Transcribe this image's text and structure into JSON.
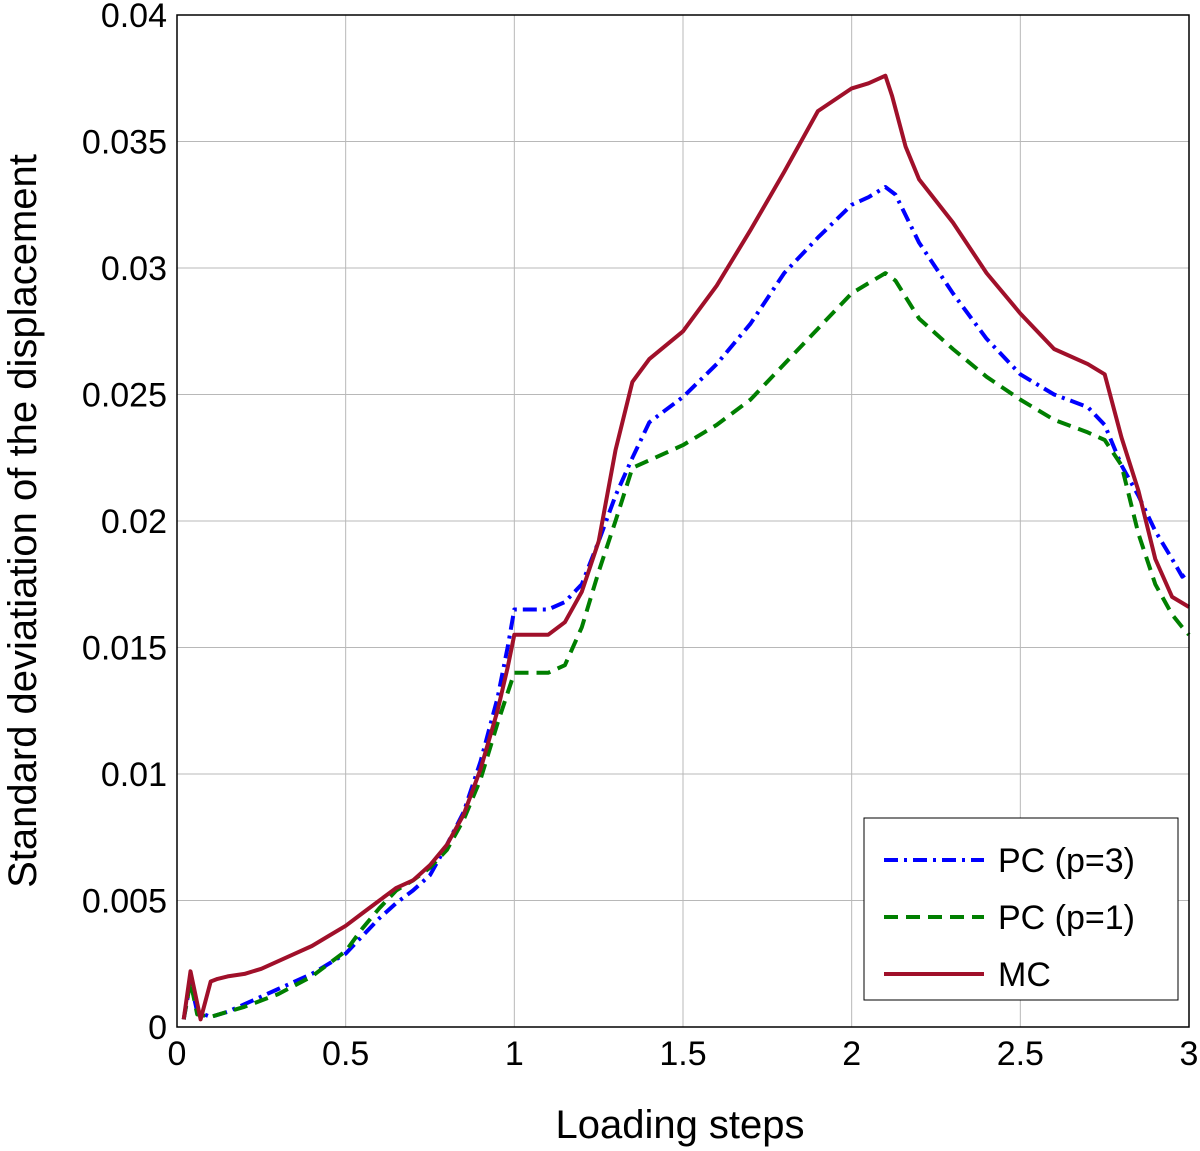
{
  "chart_data": {
    "type": "line",
    "title": "",
    "xlabel": "Loading steps",
    "ylabel": "Standard deviatiation of the displacement",
    "xlim": [
      0,
      3
    ],
    "ylim": [
      0,
      0.04
    ],
    "grid": true,
    "legend_position": "bottom-right",
    "x_ticks": [
      "0",
      "0.5",
      "1",
      "1.5",
      "2",
      "2.5",
      "3"
    ],
    "y_ticks": [
      "0",
      "0.005",
      "0.01",
      "0.015",
      "0.02",
      "0.025",
      "0.03",
      "0.035",
      "0.04"
    ],
    "series": [
      {
        "name": "PC (p=3)",
        "color": "#0000ff",
        "style": "dashdot",
        "x": [
          0.02,
          0.04,
          0.06,
          0.1,
          0.15,
          0.2,
          0.3,
          0.4,
          0.5,
          0.55,
          0.6,
          0.65,
          0.7,
          0.75,
          0.8,
          0.85,
          0.9,
          0.95,
          0.98,
          1.0,
          1.05,
          1.1,
          1.15,
          1.2,
          1.25,
          1.3,
          1.35,
          1.4,
          1.5,
          1.6,
          1.7,
          1.8,
          1.9,
          2.0,
          2.05,
          2.1,
          2.13,
          2.2,
          2.3,
          2.4,
          2.5,
          2.6,
          2.7,
          2.75,
          2.8,
          2.85,
          2.9,
          2.95,
          2.98,
          3.0
        ],
        "y": [
          0.0003,
          0.0018,
          0.0006,
          0.0004,
          0.0006,
          0.0009,
          0.0015,
          0.0021,
          0.0029,
          0.0036,
          0.0043,
          0.0049,
          0.0054,
          0.006,
          0.0072,
          0.0085,
          0.0105,
          0.013,
          0.015,
          0.0165,
          0.0165,
          0.0165,
          0.0168,
          0.0175,
          0.0192,
          0.021,
          0.0225,
          0.0239,
          0.0249,
          0.0262,
          0.0278,
          0.0298,
          0.0312,
          0.0325,
          0.0328,
          0.0332,
          0.0329,
          0.031,
          0.029,
          0.0272,
          0.0258,
          0.025,
          0.0245,
          0.0238,
          0.0222,
          0.021,
          0.0196,
          0.0185,
          0.0178,
          0.018
        ]
      },
      {
        "name": "PC (p=1)",
        "color": "#007f00",
        "style": "dashed",
        "x": [
          0.02,
          0.04,
          0.06,
          0.1,
          0.15,
          0.2,
          0.3,
          0.4,
          0.5,
          0.55,
          0.6,
          0.65,
          0.7,
          0.75,
          0.8,
          0.85,
          0.9,
          0.95,
          0.98,
          1.0,
          1.05,
          1.1,
          1.15,
          1.2,
          1.25,
          1.3,
          1.35,
          1.4,
          1.5,
          1.6,
          1.7,
          1.8,
          1.9,
          2.0,
          2.05,
          2.1,
          2.13,
          2.2,
          2.3,
          2.4,
          2.5,
          2.6,
          2.7,
          2.75,
          2.8,
          2.85,
          2.9,
          2.95,
          2.98,
          3.0
        ],
        "y": [
          0.0003,
          0.0018,
          0.0005,
          0.0004,
          0.0006,
          0.0008,
          0.0013,
          0.002,
          0.003,
          0.0039,
          0.0047,
          0.0054,
          0.0058,
          0.0063,
          0.007,
          0.0082,
          0.0098,
          0.012,
          0.0132,
          0.014,
          0.014,
          0.014,
          0.0143,
          0.0158,
          0.018,
          0.02,
          0.0221,
          0.0224,
          0.023,
          0.0238,
          0.0248,
          0.0262,
          0.0276,
          0.029,
          0.0294,
          0.0298,
          0.0295,
          0.028,
          0.0268,
          0.0257,
          0.0248,
          0.024,
          0.0235,
          0.0232,
          0.0222,
          0.0195,
          0.0175,
          0.0163,
          0.0158,
          0.0155
        ]
      },
      {
        "name": "MC",
        "color": "#a0102a",
        "style": "solid",
        "x": [
          0.02,
          0.04,
          0.07,
          0.1,
          0.12,
          0.15,
          0.2,
          0.25,
          0.3,
          0.35,
          0.4,
          0.45,
          0.5,
          0.55,
          0.6,
          0.65,
          0.7,
          0.75,
          0.8,
          0.85,
          0.9,
          0.95,
          0.98,
          1.0,
          1.05,
          1.1,
          1.15,
          1.2,
          1.25,
          1.3,
          1.35,
          1.4,
          1.5,
          1.6,
          1.7,
          1.8,
          1.9,
          2.0,
          2.05,
          2.1,
          2.12,
          2.16,
          2.2,
          2.3,
          2.4,
          2.5,
          2.6,
          2.7,
          2.75,
          2.8,
          2.85,
          2.9,
          2.95,
          3.0
        ],
        "y": [
          0.0003,
          0.0022,
          0.0003,
          0.0018,
          0.0019,
          0.002,
          0.0021,
          0.0023,
          0.0026,
          0.0029,
          0.0032,
          0.0036,
          0.004,
          0.0045,
          0.005,
          0.0055,
          0.0058,
          0.0064,
          0.0072,
          0.0084,
          0.0102,
          0.0125,
          0.0142,
          0.0155,
          0.0155,
          0.0155,
          0.016,
          0.0172,
          0.0192,
          0.0228,
          0.0255,
          0.0264,
          0.0275,
          0.0293,
          0.0315,
          0.0338,
          0.0362,
          0.0371,
          0.0373,
          0.0376,
          0.0368,
          0.0348,
          0.0335,
          0.0318,
          0.0298,
          0.0282,
          0.0268,
          0.0262,
          0.0258,
          0.0233,
          0.0212,
          0.0185,
          0.017,
          0.0166
        ]
      }
    ]
  }
}
